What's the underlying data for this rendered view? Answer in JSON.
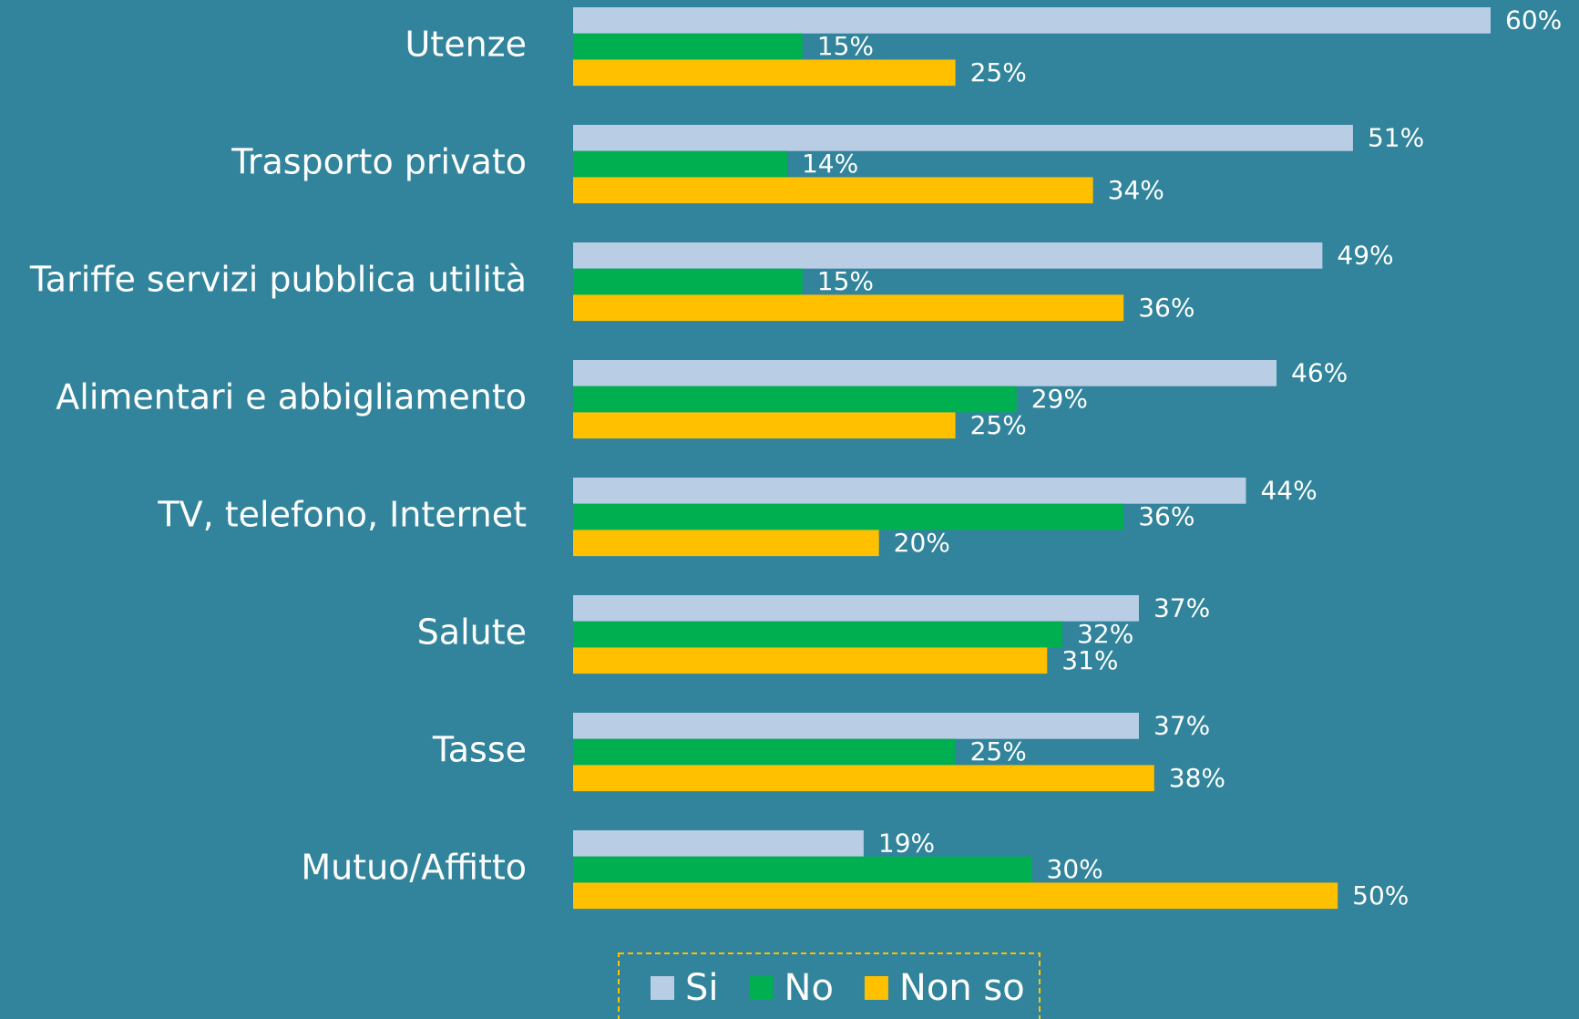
{
  "chart_data": {
    "type": "bar",
    "orientation": "horizontal",
    "categories": [
      "Utenze",
      "Trasporto privato",
      "Tariffe servizi pubblica utilità",
      "Alimentari e abbigliamento",
      "TV, telefono, Internet",
      "Salute",
      "Tasse",
      "Mutuo/Affitto"
    ],
    "series": [
      {
        "name": "Si",
        "color": "#b9cde5",
        "values": [
          60,
          51,
          49,
          46,
          44,
          37,
          37,
          19
        ],
        "value_labels": [
          "60%",
          "51%",
          "49%",
          "46%",
          "44%",
          "37%",
          "37%",
          "19%"
        ]
      },
      {
        "name": "No",
        "color": "#00b050",
        "values": [
          15,
          14,
          15,
          29,
          36,
          32,
          25,
          30
        ],
        "value_labels": [
          "15%",
          "14%",
          "15%",
          "29%",
          "36%",
          "32%",
          "25%",
          "30%"
        ]
      },
      {
        "name": "Non so",
        "color": "#ffc000",
        "values": [
          25,
          34,
          36,
          25,
          20,
          31,
          38,
          50
        ],
        "value_labels": [
          "25%",
          "34%",
          "36%",
          "25%",
          "20%",
          "31%",
          "38%",
          "50%"
        ]
      }
    ],
    "legend": "bottom"
  }
}
